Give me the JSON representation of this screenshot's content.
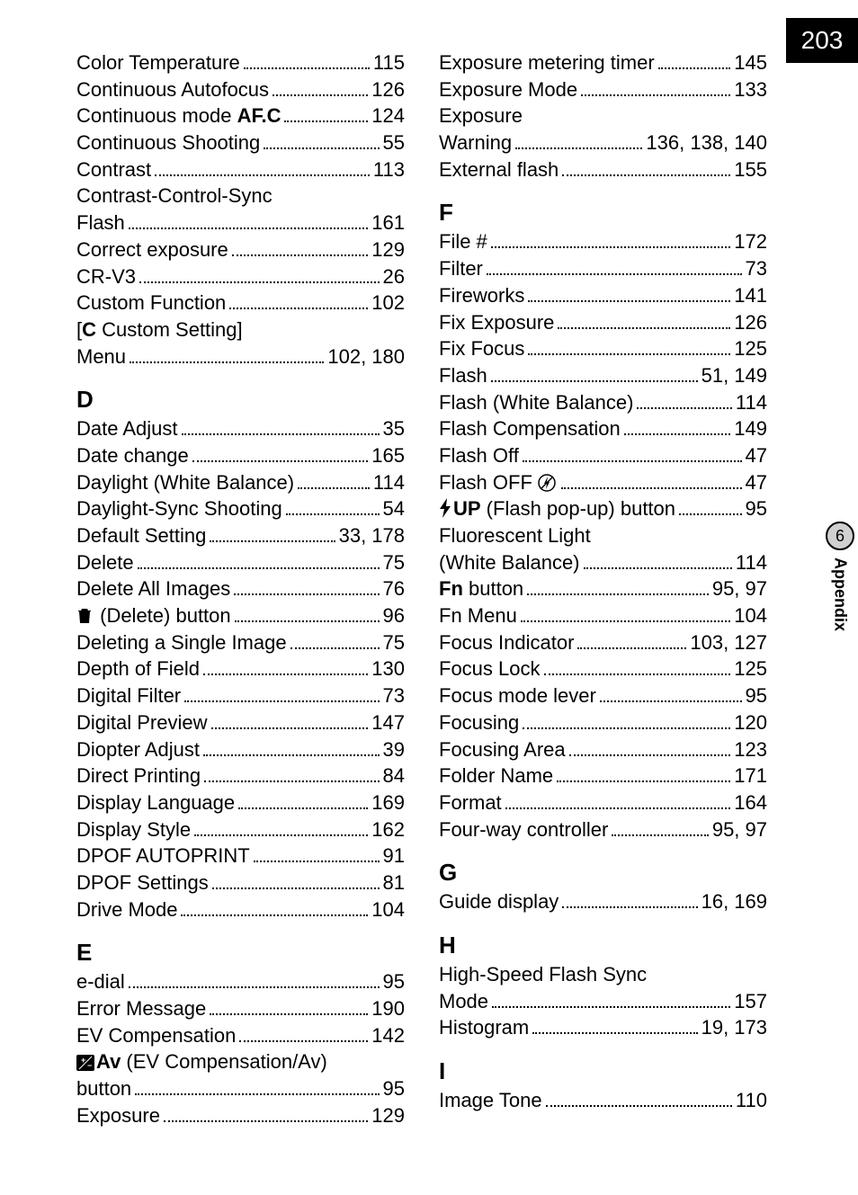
{
  "page_number": "203",
  "side_tab": {
    "number": "6",
    "label": "Appendix"
  },
  "left_column": [
    {
      "type": "entry",
      "label": "Color Temperature",
      "page": "115"
    },
    {
      "type": "entry",
      "label": "Continuous Autofocus",
      "page": "126"
    },
    {
      "type": "entry",
      "label_prefix": "Continuous mode ",
      "label_bold": "AF.C",
      "page": "124"
    },
    {
      "type": "entry",
      "label": "Continuous Shooting",
      "page": "55"
    },
    {
      "type": "entry",
      "label": "Contrast",
      "page": "113"
    },
    {
      "type": "entry_2line",
      "line1": "Contrast-Control-Sync",
      "line2_label": "Flash",
      "page": "161"
    },
    {
      "type": "entry",
      "label": "Correct exposure",
      "page": "129"
    },
    {
      "type": "entry",
      "label": "CR-V3",
      "page": "26"
    },
    {
      "type": "entry",
      "label": "Custom Function",
      "page": "102"
    },
    {
      "type": "entry_2line",
      "line1_prefix": "[",
      "line1_bold": "C",
      "line1_suffix": " Custom Setting]",
      "line2_label": "Menu",
      "page": "102, 180"
    },
    {
      "type": "heading",
      "text": "D"
    },
    {
      "type": "entry",
      "label": "Date Adjust",
      "page": "35"
    },
    {
      "type": "entry",
      "label": "Date change",
      "page": "165"
    },
    {
      "type": "entry",
      "label": "Daylight (White Balance)",
      "page": "114"
    },
    {
      "type": "entry",
      "label": "Daylight-Sync Shooting",
      "page": "54"
    },
    {
      "type": "entry",
      "label": "Default Setting",
      "page": "33, 178"
    },
    {
      "type": "entry",
      "label": "Delete",
      "page": "75"
    },
    {
      "type": "entry",
      "label": "Delete All Images",
      "page": "76"
    },
    {
      "type": "entry",
      "icon": "trash",
      "label": " (Delete) button",
      "page": "96"
    },
    {
      "type": "entry",
      "label": "Deleting a Single Image",
      "page": "75"
    },
    {
      "type": "entry",
      "label": "Depth of Field",
      "page": "130"
    },
    {
      "type": "entry",
      "label": "Digital Filter",
      "page": "73"
    },
    {
      "type": "entry",
      "label": "Digital Preview",
      "page": "147"
    },
    {
      "type": "entry",
      "label": "Diopter Adjust",
      "page": "39"
    },
    {
      "type": "entry",
      "label": "Direct Printing",
      "page": "84"
    },
    {
      "type": "entry",
      "label": "Display Language",
      "page": "169"
    },
    {
      "type": "entry",
      "label": "Display Style",
      "page": "162"
    },
    {
      "type": "entry",
      "label": "DPOF AUTOPRINT",
      "page": "91"
    },
    {
      "type": "entry",
      "label": "DPOF Settings",
      "page": "81"
    },
    {
      "type": "entry",
      "label": "Drive Mode",
      "page": "104"
    },
    {
      "type": "heading",
      "text": "E"
    },
    {
      "type": "entry",
      "label": "e-dial",
      "page": "95"
    },
    {
      "type": "entry",
      "label": "Error Message",
      "page": "190"
    },
    {
      "type": "entry",
      "label": "EV Compensation",
      "page": "142"
    },
    {
      "type": "entry_2line",
      "line1_icon": "ev",
      "line1_bold": "Av",
      "line1_suffix": " (EV Compensation/Av)",
      "line2_label": "button",
      "page": "95"
    },
    {
      "type": "entry",
      "label": "Exposure",
      "page": "129"
    }
  ],
  "right_column": [
    {
      "type": "entry",
      "label": "Exposure metering timer",
      "page": "145"
    },
    {
      "type": "entry",
      "label": "Exposure Mode",
      "page": "133"
    },
    {
      "type": "entry_2line",
      "line1": "Exposure",
      "line2_label": "Warning",
      "page": "136, 138, 140"
    },
    {
      "type": "entry",
      "label": "External flash",
      "page": "155"
    },
    {
      "type": "heading",
      "text": "F"
    },
    {
      "type": "entry",
      "label": "File #",
      "page": "172"
    },
    {
      "type": "entry",
      "label": "Filter",
      "page": "73"
    },
    {
      "type": "entry",
      "label": "Fireworks",
      "page": "141"
    },
    {
      "type": "entry",
      "label": "Fix Exposure",
      "page": "126"
    },
    {
      "type": "entry",
      "label": "Fix Focus",
      "page": "125"
    },
    {
      "type": "entry",
      "label": "Flash",
      "page": "51, 149"
    },
    {
      "type": "entry",
      "label": "Flash (White Balance)",
      "page": "114"
    },
    {
      "type": "entry",
      "label": "Flash Compensation",
      "page": "149"
    },
    {
      "type": "entry",
      "label": "Flash Off",
      "page": "47"
    },
    {
      "type": "entry",
      "label_prefix": "Flash OFF ",
      "icon_after": "flashoff",
      "page": "47"
    },
    {
      "type": "entry",
      "icon": "bolt",
      "label_bold": "UP",
      "label_suffix": " (Flash pop-up) button",
      "page": "95"
    },
    {
      "type": "entry_2line",
      "line1": "Fluorescent Light",
      "line2_label": "(White Balance)",
      "page": "114"
    },
    {
      "type": "entry",
      "label_bold": "Fn",
      "label_suffix": " button",
      "page": "95, 97"
    },
    {
      "type": "entry",
      "label": "Fn Menu",
      "page": "104"
    },
    {
      "type": "entry",
      "label": "Focus Indicator",
      "page": "103, 127"
    },
    {
      "type": "entry",
      "label": "Focus Lock",
      "page": "125"
    },
    {
      "type": "entry",
      "label": "Focus mode lever",
      "page": "95"
    },
    {
      "type": "entry",
      "label": "Focusing",
      "page": "120"
    },
    {
      "type": "entry",
      "label": "Focusing Area",
      "page": "123"
    },
    {
      "type": "entry",
      "label": "Folder Name",
      "page": "171"
    },
    {
      "type": "entry",
      "label": "Format",
      "page": "164"
    },
    {
      "type": "entry",
      "label": "Four-way controller",
      "page": "95, 97"
    },
    {
      "type": "heading",
      "text": "G"
    },
    {
      "type": "entry",
      "label": "Guide display",
      "page": "16, 169"
    },
    {
      "type": "heading",
      "text": "H"
    },
    {
      "type": "entry_2line",
      "line1": "High-Speed Flash Sync",
      "line2_label": "Mode",
      "page": "157"
    },
    {
      "type": "entry",
      "label": "Histogram",
      "page": "19, 173"
    },
    {
      "type": "heading",
      "text": "I"
    },
    {
      "type": "entry",
      "label": "Image Tone",
      "page": "110"
    }
  ]
}
